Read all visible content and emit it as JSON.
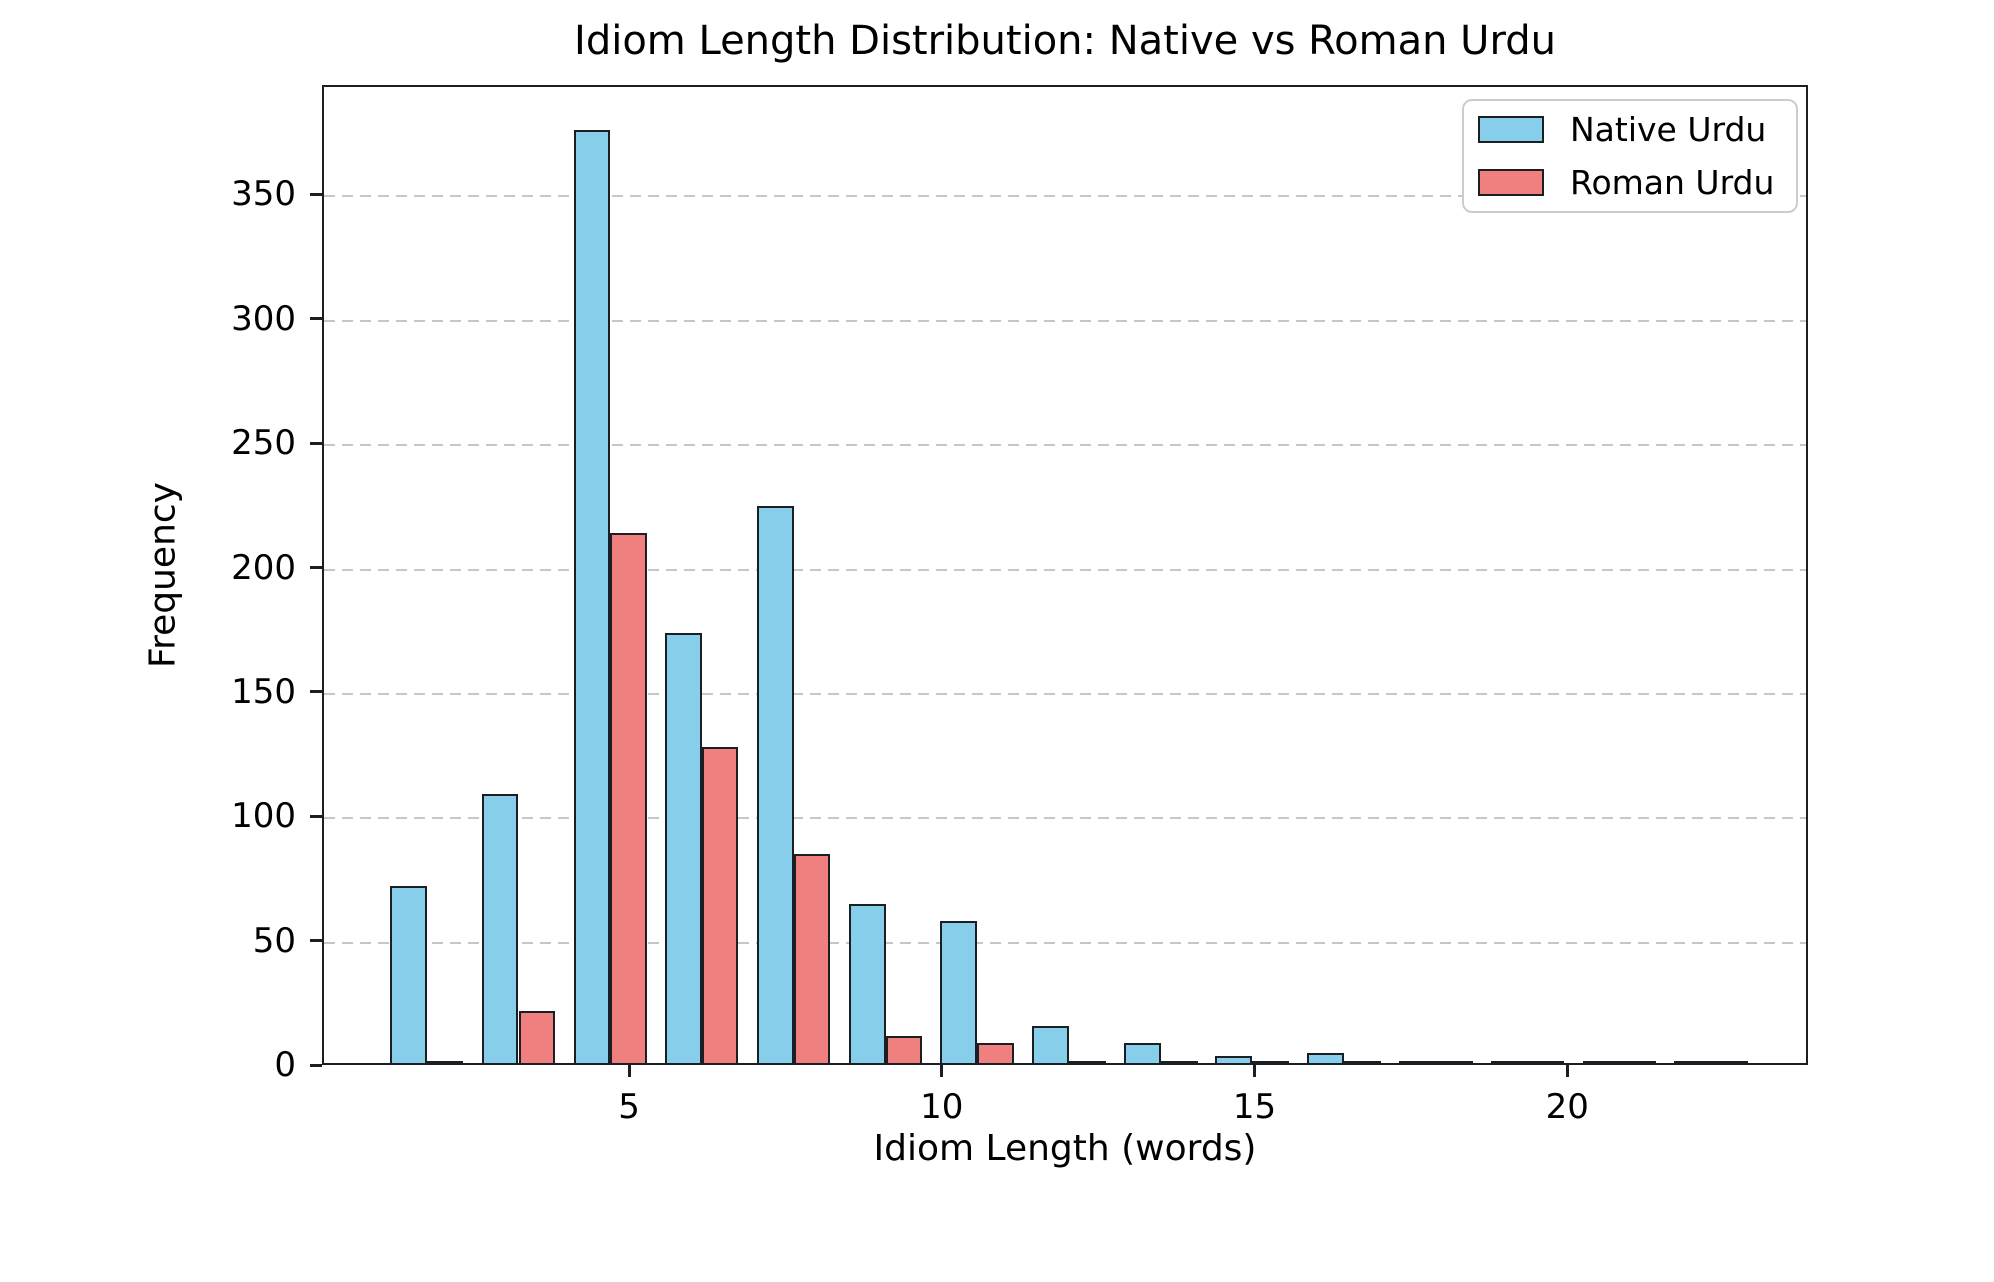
{
  "title": "Idiom Length Distribution: Native vs Roman Urdu",
  "axes": {
    "xlabel": "Idiom Length (words)",
    "ylabel": "Frequency"
  },
  "legend": {
    "items": [
      {
        "label": "Native Urdu",
        "color": "#87CEEB"
      },
      {
        "label": "Roman Urdu",
        "color": "#F08080"
      }
    ]
  },
  "colors": {
    "native": "#87CEEB",
    "roman": "#F08080",
    "bar_edge": "#1b1f24",
    "grid": "#c7c7c7",
    "background": "#ffffff"
  },
  "chart_data": {
    "type": "bar",
    "subtype": "histogram-paired",
    "title": "Idiom Length Distribution: Native vs Roman Urdu",
    "xlabel": "Idiom Length (words)",
    "ylabel": "Frequency",
    "bins": 15,
    "bin_range": [
      1,
      23
    ],
    "bin_centers": [
      1.73,
      3.2,
      4.67,
      6.13,
      7.6,
      9.07,
      10.53,
      12.0,
      13.47,
      14.93,
      16.4,
      17.87,
      19.33,
      20.8,
      22.27
    ],
    "series": [
      {
        "name": "Native Urdu",
        "color": "#87CEEB",
        "values": [
          71,
          108,
          375,
          173,
          224,
          64,
          57,
          15,
          8,
          3,
          4,
          0,
          0,
          0,
          1
        ]
      },
      {
        "name": "Roman Urdu",
        "color": "#F08080",
        "values": [
          0,
          21,
          213,
          127,
          84,
          11,
          8,
          0,
          0,
          0,
          0,
          0,
          0,
          0,
          0
        ]
      }
    ],
    "x_ticks": [
      5,
      10,
      15,
      20
    ],
    "y_ticks": [
      0,
      50,
      100,
      150,
      200,
      250,
      300,
      350
    ],
    "xlim": [
      0.09,
      23.85
    ],
    "ylim": [
      0,
      394
    ],
    "bar_half_width_units": 0.587,
    "grid": "horizontal-dashed",
    "legend_position": "upper right"
  }
}
